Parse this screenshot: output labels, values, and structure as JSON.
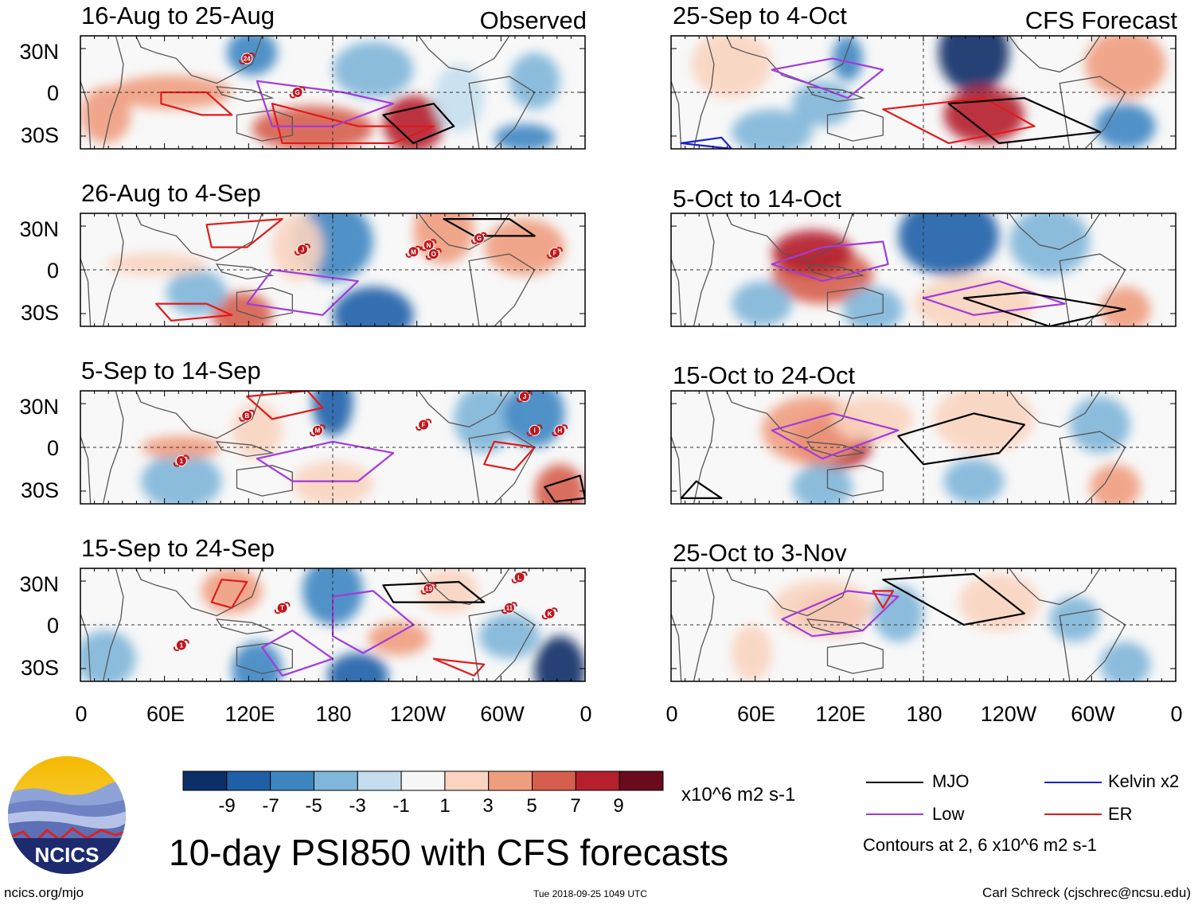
{
  "header": {
    "observed_label": "Observed",
    "forecast_label": "CFS Forecast"
  },
  "panels_left": [
    {
      "title": "16-Aug to 25-Aug"
    },
    {
      "title": "26-Aug to 4-Sep"
    },
    {
      "title": "5-Sep to 14-Sep"
    },
    {
      "title": "15-Sep to 24-Sep"
    }
  ],
  "panels_right": [
    {
      "title": "25-Sep to 4-Oct"
    },
    {
      "title": "5-Oct to 14-Oct"
    },
    {
      "title": "15-Oct to 24-Oct"
    },
    {
      "title": "25-Oct to 3-Nov"
    }
  ],
  "lat_labels": [
    "30N",
    "0",
    "30S"
  ],
  "lon_labels": [
    "0",
    "60E",
    "120E",
    "180",
    "120W",
    "60W",
    "0"
  ],
  "storms": {
    "panel1": [
      "24",
      "G"
    ],
    "panel2": [
      "J",
      "M",
      "N",
      "O",
      "G",
      "F"
    ],
    "panel3": [
      "B",
      "M",
      "1",
      "F",
      "J",
      "I",
      "H"
    ],
    "panel4": [
      "1",
      "T",
      "19",
      "L",
      "11",
      "K"
    ]
  },
  "colorbar": {
    "labels": [
      "-9",
      "-7",
      "-5",
      "-3",
      "-1",
      "1",
      "3",
      "5",
      "7",
      "9"
    ],
    "colors": [
      "#0b2f66",
      "#1f5fa8",
      "#3d86c2",
      "#80b6d9",
      "#c5deef",
      "#f7f7f7",
      "#f9d4c0",
      "#ef9d7f",
      "#d65e4d",
      "#b51f2e",
      "#6a0b1d"
    ],
    "units": "x10^6 m2 s-1"
  },
  "legend": {
    "items": [
      {
        "label": "MJO",
        "color": "#000000"
      },
      {
        "label": "Kelvin x2",
        "color": "#1a22d0"
      },
      {
        "label": "Low",
        "color": "#a23bd9"
      },
      {
        "label": "ER",
        "color": "#e01b1b"
      }
    ],
    "note": "Contours at 2, 6 x10^6 m2 s-1"
  },
  "logo": {
    "text": "NCICS"
  },
  "footer": {
    "title": "10-day PSI850 with CFS forecasts",
    "site": "ncics.org/mjo",
    "timestamp": "Tue 2018-09-25 1049 UTC",
    "author": "Carl Schreck (cjschrec@ncsu.edu)"
  }
}
